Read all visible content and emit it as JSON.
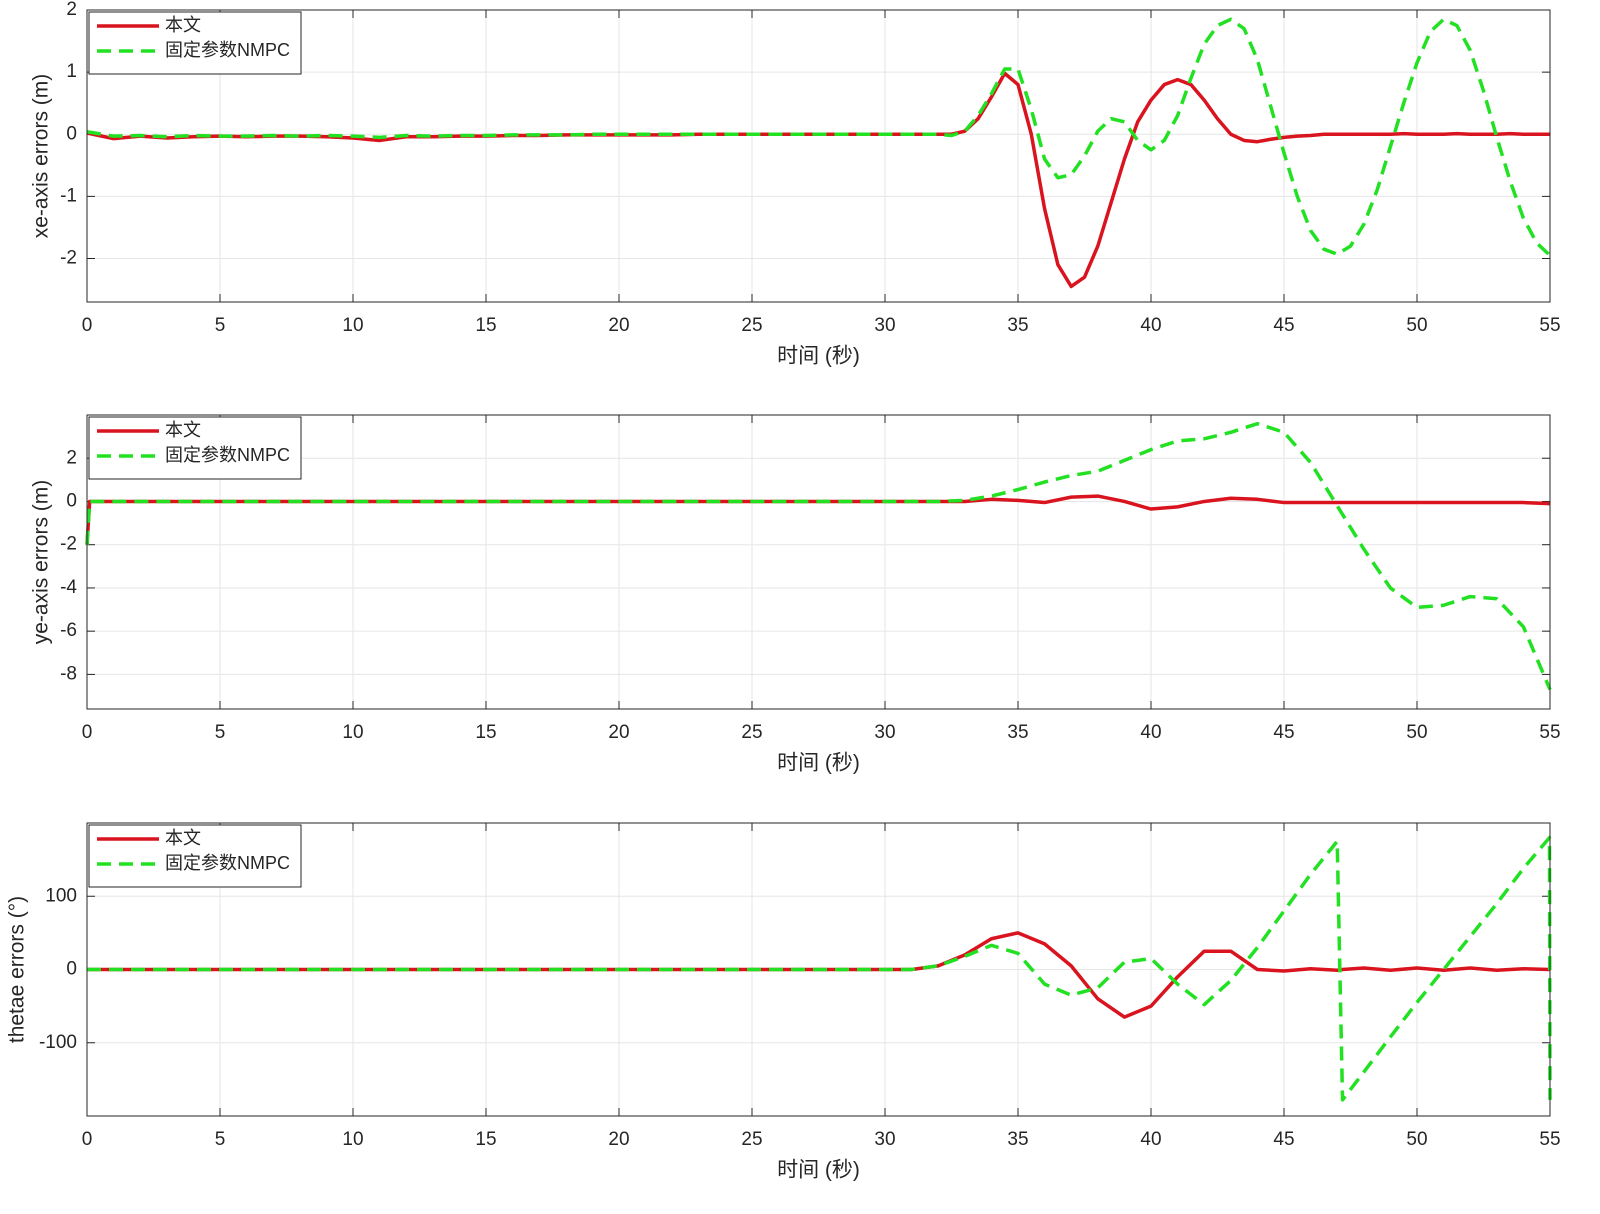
{
  "chart_data": [
    {
      "type": "line",
      "xlabel": "时间 (秒)",
      "ylabel": "xe-axis errors (m)",
      "grid": true,
      "legend": "upper left",
      "xlim": [
        0,
        55
      ],
      "xticks": [
        0,
        5,
        10,
        15,
        20,
        25,
        30,
        35,
        40,
        45,
        50,
        55
      ],
      "ylim": [
        -2.7,
        2
      ],
      "yticks": [
        -2,
        -1,
        0,
        1,
        2
      ],
      "x": [
        0,
        1,
        2,
        3,
        4,
        5,
        6,
        7,
        8,
        9,
        10,
        11,
        12,
        13,
        14,
        15,
        16,
        17,
        18,
        19,
        20,
        21,
        22,
        23,
        24,
        25,
        26,
        27,
        28,
        29,
        30,
        31,
        32,
        32.5,
        33,
        33.5,
        34,
        34.5,
        35,
        35.5,
        36,
        36.5,
        37,
        37.5,
        38,
        38.5,
        39,
        39.5,
        40,
        40.5,
        41,
        41.5,
        42,
        42.5,
        43,
        43.5,
        44,
        44.5,
        45,
        45.5,
        46,
        46.5,
        47,
        47.5,
        48,
        48.5,
        49,
        49.5,
        50,
        50.5,
        51,
        51.5,
        52,
        52.5,
        53,
        53.5,
        54,
        54.5,
        55
      ],
      "series": [
        {
          "name": "本文",
          "color": "#d9141e",
          "style": "solid",
          "values": [
            0.02,
            -0.07,
            -0.03,
            -0.06,
            -0.04,
            -0.03,
            -0.04,
            -0.03,
            -0.03,
            -0.04,
            -0.06,
            -0.1,
            -0.04,
            -0.04,
            -0.03,
            -0.03,
            -0.02,
            -0.02,
            -0.01,
            -0.01,
            -0.01,
            -0.01,
            -0.01,
            0,
            0,
            0,
            0,
            0,
            0,
            0,
            0,
            0,
            0,
            0,
            0.05,
            0.25,
            0.6,
            0.98,
            0.8,
            0,
            -1.2,
            -2.1,
            -2.45,
            -2.3,
            -1.8,
            -1.1,
            -0.4,
            0.2,
            0.55,
            0.8,
            0.88,
            0.8,
            0.55,
            0.25,
            0,
            -0.1,
            -0.12,
            -0.08,
            -0.05,
            -0.03,
            -0.02,
            0,
            0,
            0,
            0,
            0,
            0,
            0.01,
            0,
            0,
            0,
            0.01,
            0,
            0,
            0,
            0.01,
            0,
            0,
            0
          ]
        },
        {
          "name": "固定参数NMPC",
          "color": "#22e022",
          "style": "dashed",
          "values": [
            0.04,
            -0.03,
            -0.02,
            -0.04,
            -0.02,
            -0.03,
            -0.03,
            -0.02,
            -0.03,
            -0.02,
            -0.03,
            -0.05,
            -0.02,
            -0.03,
            -0.02,
            -0.02,
            -0.01,
            -0.01,
            -0.01,
            0,
            0,
            0,
            0,
            0,
            0,
            0,
            0,
            0,
            0,
            0,
            0,
            0,
            0,
            -0.02,
            0.05,
            0.3,
            0.65,
            1.05,
            1.05,
            0.4,
            -0.4,
            -0.7,
            -0.65,
            -0.35,
            0.05,
            0.25,
            0.2,
            -0.1,
            -0.25,
            -0.1,
            0.3,
            0.9,
            1.45,
            1.75,
            1.85,
            1.7,
            1.2,
            0.45,
            -0.3,
            -1,
            -1.55,
            -1.85,
            -1.93,
            -1.8,
            -1.45,
            -0.9,
            -0.2,
            0.5,
            1.15,
            1.65,
            1.85,
            1.75,
            1.35,
            0.7,
            -0.05,
            -0.75,
            -1.35,
            -1.75,
            -1.95
          ]
        }
      ]
    },
    {
      "type": "line",
      "xlabel": "时间 (秒)",
      "ylabel": "ye-axis errors (m)",
      "grid": true,
      "legend": "upper left",
      "xlim": [
        0,
        55
      ],
      "xticks": [
        0,
        5,
        10,
        15,
        20,
        25,
        30,
        35,
        40,
        45,
        50,
        55
      ],
      "ylim": [
        -9.6,
        4
      ],
      "yticks": [
        -8,
        -6,
        -4,
        -2,
        0,
        2
      ],
      "x": [
        0,
        0.1,
        1,
        2,
        3,
        4,
        5,
        6,
        7,
        8,
        9,
        10,
        11,
        12,
        13,
        14,
        15,
        16,
        17,
        18,
        19,
        20,
        21,
        22,
        23,
        24,
        25,
        26,
        27,
        28,
        29,
        30,
        31,
        32,
        33,
        34,
        35,
        36,
        37,
        38,
        39,
        40,
        41,
        42,
        43,
        44,
        45,
        46,
        47,
        48,
        49,
        50,
        51,
        52,
        53,
        54,
        55
      ],
      "series": [
        {
          "name": "本文",
          "color": "#d9141e",
          "style": "solid",
          "values": [
            -2,
            0,
            0,
            0,
            0,
            0,
            0,
            0,
            0,
            0,
            0,
            0,
            0,
            0,
            0,
            0,
            0,
            0,
            0,
            0,
            0,
            0,
            0,
            0,
            0,
            0,
            0,
            0,
            0,
            0,
            0,
            0,
            0,
            0,
            0,
            0.1,
            0.05,
            -0.05,
            0.2,
            0.25,
            0,
            -0.35,
            -0.25,
            0,
            0.15,
            0.1,
            -0.05,
            -0.05,
            -0.05,
            -0.05,
            -0.05,
            -0.05,
            -0.05,
            -0.05,
            -0.05,
            -0.05,
            -0.1
          ]
        },
        {
          "name": "固定参数NMPC",
          "color": "#22e022",
          "style": "dashed",
          "values": [
            -2,
            0,
            0,
            0,
            0,
            0,
            0,
            0,
            0,
            0,
            0,
            0,
            0,
            0,
            0,
            0,
            0,
            0,
            0,
            0,
            0,
            0,
            0,
            0,
            0,
            0,
            0,
            0,
            0,
            0,
            0,
            0,
            0,
            0,
            0.05,
            0.25,
            0.55,
            0.9,
            1.2,
            1.4,
            1.9,
            2.4,
            2.8,
            2.9,
            3.2,
            3.6,
            3.2,
            1.8,
            -0.2,
            -2.2,
            -4,
            -4.9,
            -4.8,
            -4.4,
            -4.5,
            -5.8,
            -8.7
          ]
        }
      ]
    },
    {
      "type": "line",
      "xlabel": "时间 (秒)",
      "ylabel": "thetae errors (°)",
      "grid": true,
      "legend": "upper left",
      "xlim": [
        0,
        55
      ],
      "xticks": [
        0,
        5,
        10,
        15,
        20,
        25,
        30,
        35,
        40,
        45,
        50,
        55
      ],
      "ylim": [
        -200,
        200
      ],
      "yticks": [
        -100,
        0,
        100
      ],
      "x": [
        0,
        1,
        2,
        3,
        4,
        5,
        6,
        7,
        8,
        9,
        10,
        11,
        12,
        13,
        14,
        15,
        16,
        17,
        18,
        19,
        20,
        21,
        22,
        23,
        24,
        25,
        26,
        27,
        28,
        29,
        30,
        31,
        32,
        33,
        34,
        35,
        36,
        37,
        38,
        39,
        40,
        41,
        42,
        43,
        44,
        45,
        46,
        47,
        47.2,
        48,
        49,
        50,
        51,
        52,
        53,
        54,
        54.98,
        55
      ],
      "series": [
        {
          "name": "本文",
          "color": "#d9141e",
          "style": "solid",
          "values": [
            0,
            0,
            0,
            0,
            0,
            0,
            0,
            0,
            0,
            0,
            0,
            0,
            0,
            0,
            0,
            0,
            0,
            0,
            0,
            0,
            0,
            0,
            0,
            0,
            0,
            0,
            0,
            0,
            0,
            0,
            0,
            0,
            5,
            20,
            42,
            50,
            35,
            5,
            -40,
            -65,
            -50,
            -10,
            25,
            25,
            0,
            -2,
            1,
            -1,
            0,
            2,
            -1,
            2,
            -1,
            2,
            -1,
            1,
            0,
            0
          ]
        },
        {
          "name": "固定参数NMPC",
          "color": "#22e022",
          "style": "dashed",
          "values": [
            0,
            0,
            0,
            0,
            0,
            0,
            0,
            0,
            0,
            0,
            0,
            0,
            0,
            0,
            0,
            0,
            0,
            0,
            0,
            0,
            0,
            0,
            0,
            0,
            0,
            0,
            0,
            0,
            0,
            0,
            0,
            0,
            5,
            18,
            33,
            22,
            -20,
            -35,
            -25,
            10,
            15,
            -20,
            -48,
            -15,
            30,
            80,
            130,
            175,
            -178,
            -140,
            -92,
            -45,
            0,
            45,
            90,
            138,
            180,
            -178
          ]
        }
      ]
    }
  ]
}
